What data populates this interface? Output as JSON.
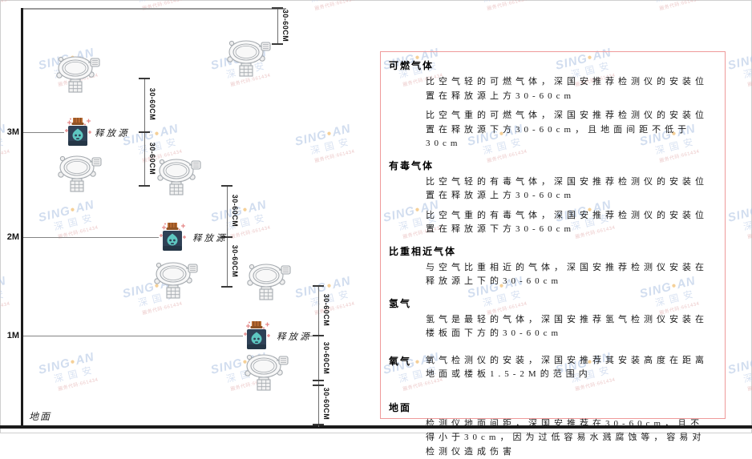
{
  "watermark": {
    "brand_left": "SING",
    "dot": "●",
    "brand_right": "AN",
    "cn": "深国安",
    "code": "服务代码:661434"
  },
  "diagram": {
    "labels": {
      "m3": "3M",
      "m2": "2M",
      "m1": "1M",
      "ground": "地面",
      "release_source": "释放源",
      "dim": "30-60CM"
    },
    "icons": {
      "detector": "gas-detector-icon",
      "release_source": "release-source-icon"
    }
  },
  "panel": {
    "sections": [
      {
        "title": "可燃气体",
        "paragraphs": [
          "比空气轻的可燃气体，深国安推荐检测仪的安装位置在释放源上方30-60cm",
          "比空气重的可燃气体，深国安推荐检测仪的安装位置在释放源下方30-60cm，且地面间距不低于30cm"
        ]
      },
      {
        "title": "有毒气体",
        "paragraphs": [
          "比空气轻的有毒气体，深国安推荐检测仪的安装位置在释放源上方30-60cm",
          "比空气重的有毒气体，深国安推荐检测仪的安装位置在释放源下方30-60cm"
        ]
      },
      {
        "title": "比重相近气体",
        "paragraphs": [
          "与空气比重相近的气体，深国安推荐检测仪安装在释放源上下的30-60cm"
        ]
      },
      {
        "title": "氢气",
        "paragraphs": [
          "氢气是最轻的气体，深国安推荐氢气检测仪安装在楼板面下方的30-60cm"
        ]
      },
      {
        "title": "氧气",
        "paragraphs": [
          "氧气检测仪的安装，深国安推荐其安装高度在距离地面或楼板1.5-2M的范围内"
        ]
      },
      {
        "title": "地面",
        "paragraphs": [
          "检测仪地面间距，深国安推荐在30-60cm，且不得小于30cm，因为过低容易水溅腐蚀等，容易对检测仪造成伤害"
        ]
      }
    ]
  },
  "colors": {
    "panel_border": "#ef9a9a",
    "wall_ground": "#1b1b1b",
    "dim_line": "#6e6e6e",
    "bottle_body": "#2f4156",
    "bottle_cap": "#b96b33",
    "bottle_drop": "#5ec7c1",
    "sparkle": "#e58a8a",
    "detector_stroke": "#a6abb0",
    "watermark_blue": "#adc2e2",
    "watermark_orange": "#edaa45",
    "watermark_code_red": "#dc9a9a"
  }
}
